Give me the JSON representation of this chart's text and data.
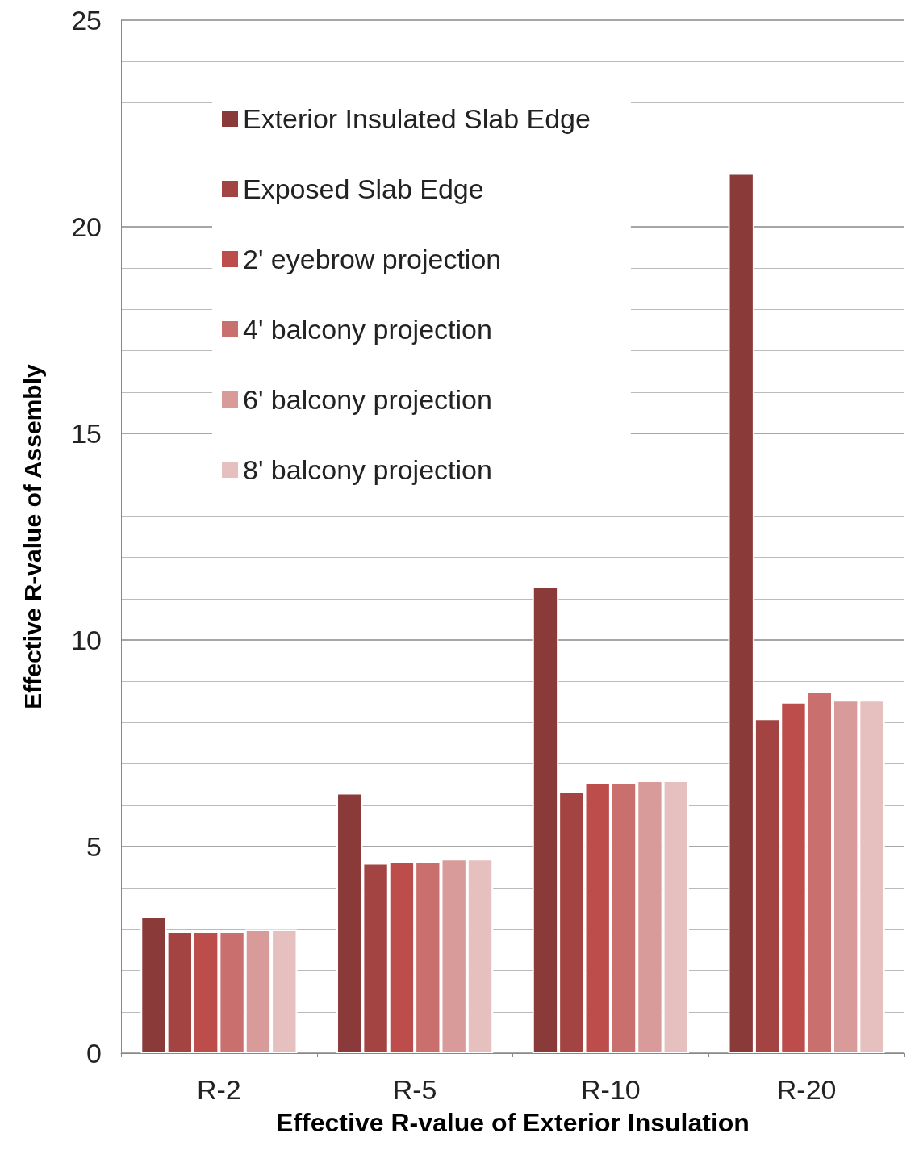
{
  "chart_data": {
    "type": "bar",
    "xlabel": "Effective R-value of Exterior Insulation",
    "ylabel": "Effective R-value of Assembly",
    "categories": [
      "R-2",
      "R-5",
      "R-10",
      "R-20"
    ],
    "series": [
      {
        "name": "Exterior Insulated Slab Edge",
        "color": "#8b3a3a",
        "values": [
          3.3,
          6.3,
          11.3,
          21.3
        ]
      },
      {
        "name": "Exposed Slab Edge",
        "color": "#a44442",
        "values": [
          2.95,
          4.6,
          6.35,
          8.1
        ]
      },
      {
        "name": "2' eyebrow projection",
        "color": "#bc4d4b",
        "values": [
          2.95,
          4.65,
          6.55,
          8.5
        ]
      },
      {
        "name": "4' balcony projection",
        "color": "#c9706e",
        "values": [
          2.95,
          4.65,
          6.55,
          8.75
        ]
      },
      {
        "name": "6' balcony projection",
        "color": "#d89b9a",
        "values": [
          3.0,
          4.7,
          6.6,
          8.55
        ]
      },
      {
        "name": "8' balcony projection",
        "color": "#e6bfbf",
        "values": [
          3.0,
          4.7,
          6.6,
          8.55
        ]
      }
    ],
    "ylim": [
      0,
      25
    ],
    "yticks": [
      0,
      5,
      10,
      15,
      20,
      25
    ],
    "grid": "y",
    "legend": "top left"
  }
}
